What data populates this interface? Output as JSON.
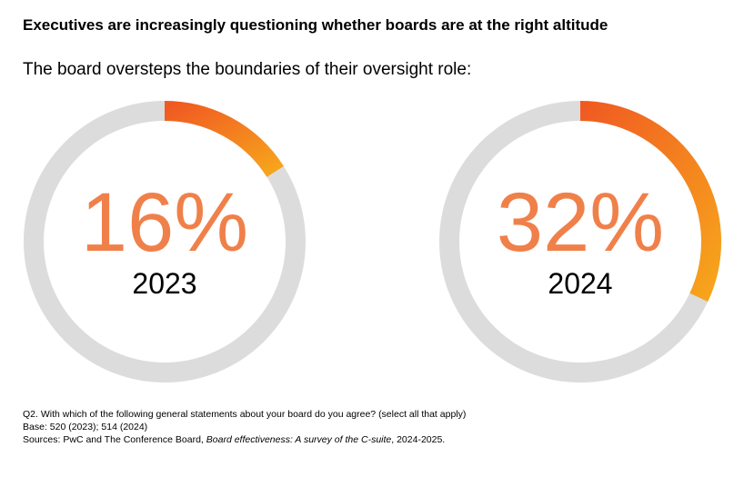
{
  "title": "Executives are increasingly questioning whether boards are at the right altitude",
  "subtitle": "The board oversteps the boundaries of their oversight role:",
  "notes": {
    "question": "Q2. With which of the following general statements about your board do you agree? (select all that apply)",
    "base": "Base: 520 (2023); 514 (2024)",
    "sources": [
      "Sources: PwC and The Conference Board, ",
      "Board effectiveness: A survey of the C-suite",
      ", 2024-2025."
    ]
  },
  "chart_data": [
    {
      "type": "donut",
      "categories": [
        "2023"
      ],
      "values": [
        16
      ],
      "value_labels": [
        "16%"
      ],
      "colors": [
        "#f05a22",
        "#f7a51c"
      ],
      "track_color": "#dcdcdc"
    },
    {
      "type": "donut",
      "categories": [
        "2024"
      ],
      "values": [
        32
      ],
      "value_labels": [
        "32%"
      ],
      "colors": [
        "#f05a22",
        "#f7a51c"
      ],
      "track_color": "#dcdcdc"
    }
  ]
}
